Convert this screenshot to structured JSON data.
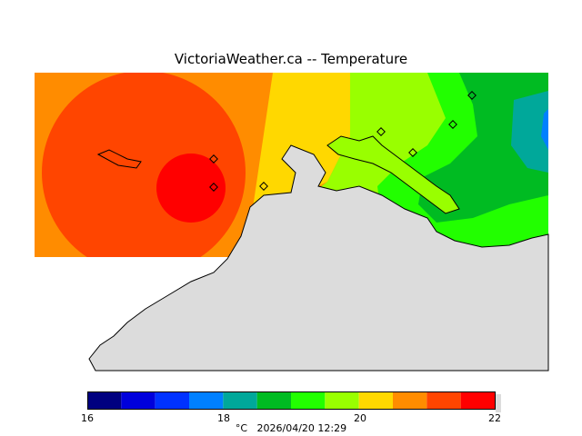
{
  "title": "VictoriaWeather.ca -- Temperature",
  "legend": {
    "ticks": [
      "16",
      "18",
      "20",
      "22"
    ],
    "colors": [
      "#000080",
      "#0000dc",
      "#0032ff",
      "#0080ff",
      "#00a89a",
      "#00bb22",
      "#22ff00",
      "#99ff00",
      "#ffd800",
      "#ff8c00",
      "#ff4500",
      "#ff0000"
    ],
    "units": "°C",
    "timestamp": "2026/04/20 12:29"
  },
  "map": {
    "stations": 7,
    "land_color": "#dcdcdc"
  }
}
